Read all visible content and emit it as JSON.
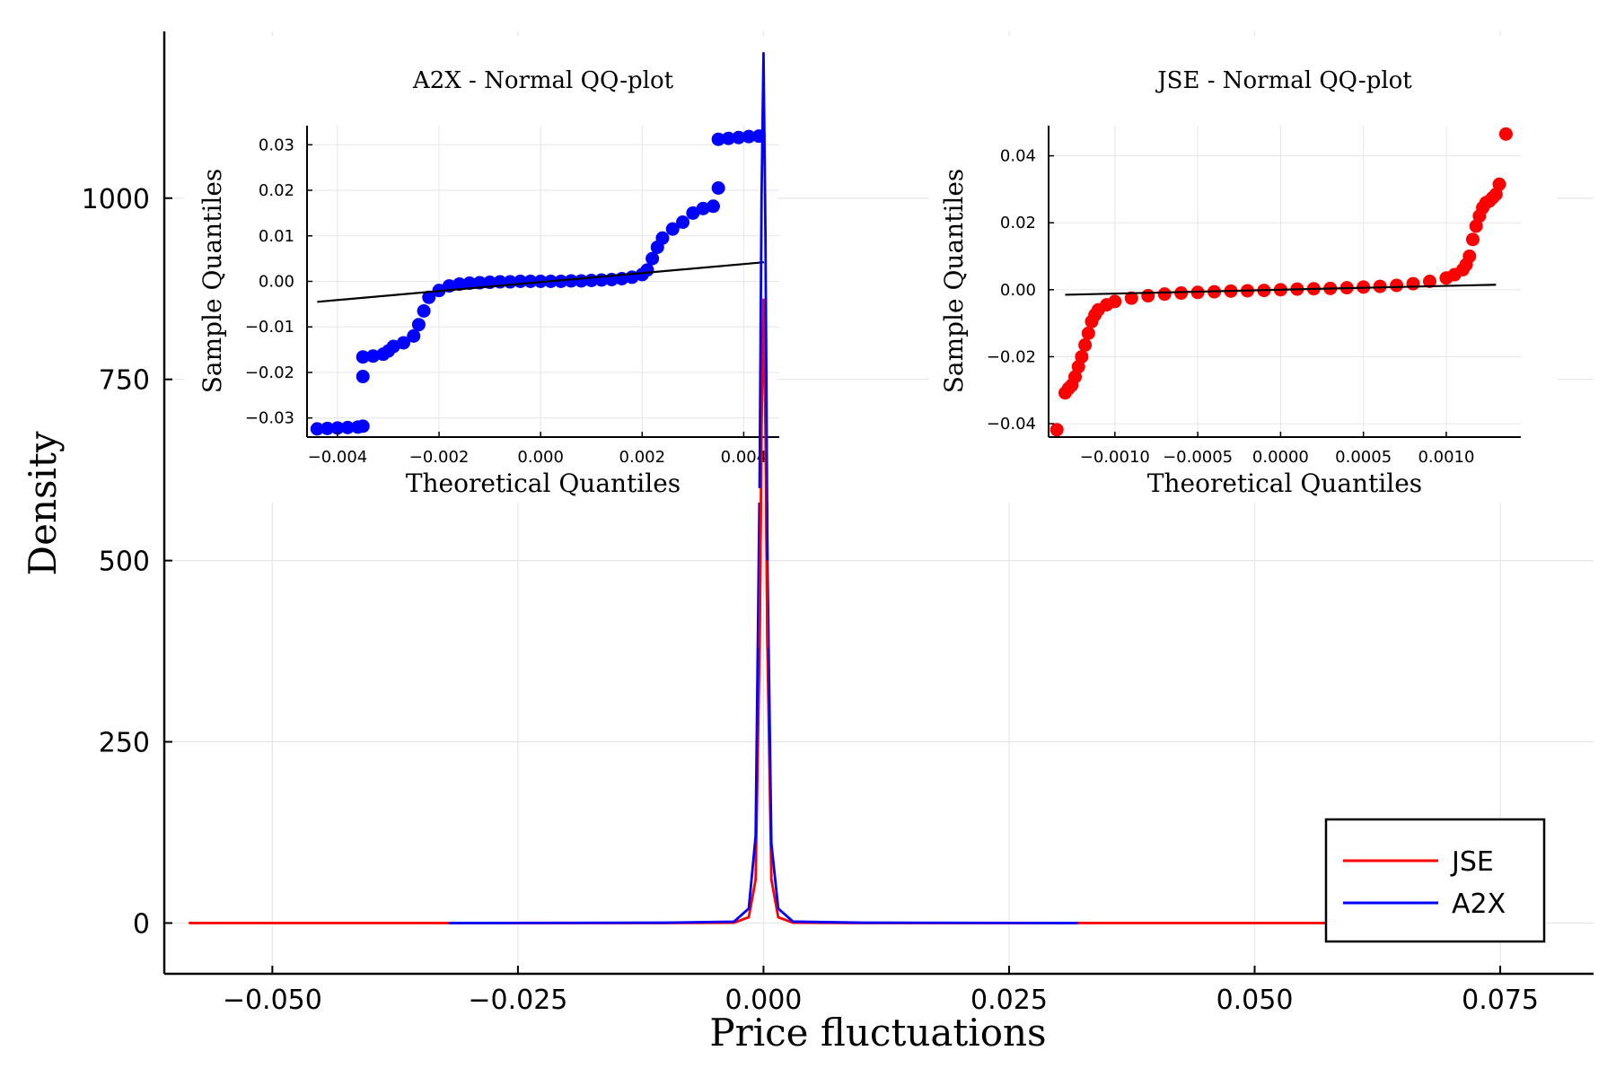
{
  "chart_data": [
    {
      "type": "line",
      "id": "main",
      "title": "",
      "xlabel": "Price fluctuations",
      "ylabel": "Density",
      "xlim": [
        -0.061,
        0.0845
      ],
      "ylim": [
        -70,
        1230
      ],
      "xticks": [
        -0.05,
        -0.025,
        0.0,
        0.025,
        0.05,
        0.075
      ],
      "xtick_labels": [
        "−0.050",
        "−0.025",
        "0.000",
        "0.025",
        "0.050",
        "0.075"
      ],
      "yticks": [
        0,
        250,
        500,
        750,
        1000
      ],
      "ytick_labels": [
        "0",
        "250",
        "500",
        "750",
        "1000"
      ],
      "grid": true,
      "legend_position": "bottom-right",
      "series": [
        {
          "name": "JSE",
          "color": "#ff0000",
          "x": [
            -0.0585,
            -0.01,
            -0.003,
            -0.0015,
            -0.0008,
            -0.0004,
            -0.0002,
            0.0,
            0.0002,
            0.0004,
            0.0008,
            0.0015,
            0.003,
            0.01,
            0.0795
          ],
          "y": [
            0,
            0,
            0.5,
            8,
            60,
            380,
            680,
            860,
            680,
            380,
            60,
            8,
            0.5,
            0,
            0
          ]
        },
        {
          "name": "A2X",
          "color": "#0000ff",
          "x": [
            -0.032,
            -0.01,
            -0.003,
            -0.0015,
            -0.0008,
            -0.0004,
            -0.0002,
            0.0,
            0.0002,
            0.0004,
            0.0008,
            0.0015,
            0.003,
            0.01,
            0.032
          ],
          "y": [
            0,
            0.5,
            2,
            20,
            120,
            600,
            1000,
            1200,
            950,
            500,
            110,
            20,
            2,
            0.5,
            0
          ]
        }
      ]
    },
    {
      "type": "scatter",
      "id": "qq-a2x",
      "title": "A2X - Normal QQ-plot",
      "xlabel": "Theoretical Quantiles",
      "ylabel": "Sample Quantiles",
      "xlim": [
        -0.0046,
        0.0047
      ],
      "ylim": [
        -0.0342,
        0.0342
      ],
      "xticks": [
        -0.004,
        -0.002,
        0.0,
        0.002,
        0.004
      ],
      "xtick_labels": [
        "−0.004",
        "−0.002",
        "0.000",
        "0.002",
        "0.004"
      ],
      "yticks": [
        -0.03,
        -0.02,
        -0.01,
        0.0,
        0.01,
        0.02,
        0.03
      ],
      "ytick_labels": [
        "−0.03",
        "−0.02",
        "−0.01",
        "0.00",
        "0.01",
        "0.02",
        "0.03"
      ],
      "grid": true,
      "color": "#0000ff",
      "reference_line": {
        "x": [
          -0.0044,
          0.0044
        ],
        "y": [
          -0.0045,
          0.0042
        ]
      },
      "points": [
        [
          -0.0044,
          -0.0324
        ],
        [
          -0.0042,
          -0.0323
        ],
        [
          -0.004,
          -0.0322
        ],
        [
          -0.0038,
          -0.0321
        ],
        [
          -0.0036,
          -0.032
        ],
        [
          -0.0035,
          -0.0318
        ],
        [
          -0.0035,
          -0.0209
        ],
        [
          -0.0035,
          -0.0166
        ],
        [
          -0.0033,
          -0.0164
        ],
        [
          -0.0031,
          -0.016
        ],
        [
          -0.003,
          -0.0153
        ],
        [
          -0.0029,
          -0.0143
        ],
        [
          -0.0027,
          -0.0135
        ],
        [
          -0.0025,
          -0.012
        ],
        [
          -0.0024,
          -0.0095
        ],
        [
          -0.0023,
          -0.0065
        ],
        [
          -0.0022,
          -0.0035
        ],
        [
          -0.002,
          -0.002
        ],
        [
          -0.0018,
          -0.001
        ],
        [
          -0.0016,
          -0.0006
        ],
        [
          -0.0014,
          -0.0004
        ],
        [
          -0.0012,
          -0.0003
        ],
        [
          -0.001,
          -0.0002
        ],
        [
          -0.0008,
          -0.0001
        ],
        [
          -0.0006,
          -0.0001
        ],
        [
          -0.0004,
          0.0
        ],
        [
          -0.0002,
          0.0
        ],
        [
          0.0,
          0.0
        ],
        [
          0.0002,
          0.0
        ],
        [
          0.0004,
          0.0
        ],
        [
          0.0006,
          0.0001
        ],
        [
          0.0008,
          0.0001
        ],
        [
          0.001,
          0.0002
        ],
        [
          0.0012,
          0.0003
        ],
        [
          0.0014,
          0.0004
        ],
        [
          0.0016,
          0.0006
        ],
        [
          0.0018,
          0.0009
        ],
        [
          0.002,
          0.0015
        ],
        [
          0.0021,
          0.0025
        ],
        [
          0.0022,
          0.005
        ],
        [
          0.0023,
          0.0075
        ],
        [
          0.0024,
          0.0095
        ],
        [
          0.0026,
          0.0115
        ],
        [
          0.0028,
          0.013
        ],
        [
          0.003,
          0.015
        ],
        [
          0.0032,
          0.016
        ],
        [
          0.0034,
          0.0165
        ],
        [
          0.0035,
          0.0205
        ],
        [
          0.0035,
          0.0312
        ],
        [
          0.0037,
          0.0314
        ],
        [
          0.0039,
          0.0316
        ],
        [
          0.0041,
          0.0318
        ],
        [
          0.0043,
          0.0319
        ]
      ]
    },
    {
      "type": "scatter",
      "id": "qq-jse",
      "title": "JSE - Normal QQ-plot",
      "xlabel": "Theoretical Quantiles",
      "ylabel": "Sample Quantiles",
      "xlim": [
        -0.0014,
        0.00145
      ],
      "ylim": [
        -0.044,
        0.049
      ],
      "xticks": [
        -0.001,
        -0.0005,
        0.0,
        0.0005,
        0.001
      ],
      "xtick_labels": [
        "−0.0010",
        "−0.0005",
        "0.0000",
        "0.0005",
        "0.0010"
      ],
      "yticks": [
        -0.04,
        -0.02,
        0.0,
        0.02,
        0.04
      ],
      "ytick_labels": [
        "−0.04",
        "−0.02",
        "0.00",
        "0.02",
        "0.04"
      ],
      "grid": true,
      "color": "#ff0000",
      "reference_line": {
        "x": [
          -0.0013,
          0.0013
        ],
        "y": [
          -0.0015,
          0.0015
        ]
      },
      "points": [
        [
          -0.00135,
          -0.0418
        ],
        [
          -0.0013,
          -0.0308
        ],
        [
          -0.00128,
          -0.0295
        ],
        [
          -0.00126,
          -0.0285
        ],
        [
          -0.00124,
          -0.026
        ],
        [
          -0.00122,
          -0.023
        ],
        [
          -0.0012,
          -0.02
        ],
        [
          -0.00118,
          -0.0165
        ],
        [
          -0.00116,
          -0.013
        ],
        [
          -0.00114,
          -0.0095
        ],
        [
          -0.00112,
          -0.0075
        ],
        [
          -0.0011,
          -0.006
        ],
        [
          -0.00105,
          -0.0045
        ],
        [
          -0.001,
          -0.0035
        ],
        [
          -0.0009,
          -0.0025
        ],
        [
          -0.0008,
          -0.0018
        ],
        [
          -0.0007,
          -0.0013
        ],
        [
          -0.0006,
          -0.001
        ],
        [
          -0.0005,
          -0.0008
        ],
        [
          -0.0004,
          -0.0006
        ],
        [
          -0.0003,
          -0.0004
        ],
        [
          -0.0002,
          -0.0003
        ],
        [
          -0.0001,
          -0.0002
        ],
        [
          0.0,
          0.0
        ],
        [
          0.0001,
          0.0002
        ],
        [
          0.0002,
          0.0003
        ],
        [
          0.0003,
          0.0004
        ],
        [
          0.0004,
          0.0006
        ],
        [
          0.0005,
          0.0008
        ],
        [
          0.0006,
          0.001
        ],
        [
          0.0007,
          0.0013
        ],
        [
          0.0008,
          0.0018
        ],
        [
          0.0009,
          0.0025
        ],
        [
          0.001,
          0.0035
        ],
        [
          0.00105,
          0.0045
        ],
        [
          0.0011,
          0.006
        ],
        [
          0.00112,
          0.0075
        ],
        [
          0.00114,
          0.01
        ],
        [
          0.00116,
          0.015
        ],
        [
          0.00118,
          0.019
        ],
        [
          0.0012,
          0.022
        ],
        [
          0.00122,
          0.0245
        ],
        [
          0.00124,
          0.026
        ],
        [
          0.00126,
          0.0265
        ],
        [
          0.00128,
          0.0275
        ],
        [
          0.0013,
          0.0285
        ],
        [
          0.00132,
          0.0315
        ],
        [
          0.00136,
          0.0465
        ]
      ]
    }
  ]
}
